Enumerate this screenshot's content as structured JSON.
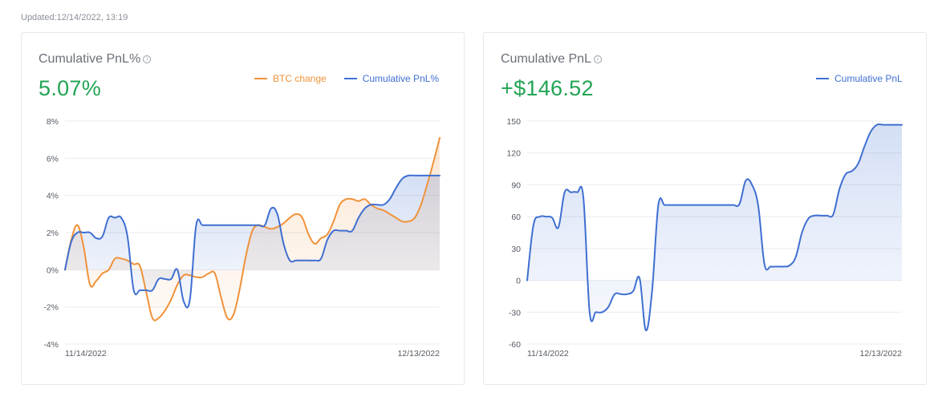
{
  "updated": "Updated:12/14/2022, 13:19",
  "colors": {
    "btc": "#f0923a",
    "pnl": "#3f6fd1",
    "value_green": "#22a453"
  },
  "cards": [
    {
      "title": "Cumulative PnL%",
      "info_icon": "info-icon",
      "value": "5.07%",
      "legend": [
        {
          "label": "BTC change",
          "color": "#f0923a"
        },
        {
          "label": "Cumulative PnL%",
          "color": "#3f6fd1"
        }
      ],
      "chart_data": {
        "type": "line",
        "x_labels": [
          "11/14/2022",
          "12/13/2022"
        ],
        "ylim": [
          -4,
          8
        ],
        "yticks": [
          -4,
          -2,
          0,
          2,
          4,
          6,
          8
        ],
        "ytick_labels": [
          "-4%",
          "-2%",
          "0%",
          "2%",
          "4%",
          "6%",
          "8%"
        ],
        "grid": true,
        "series": [
          {
            "name": "BTC change",
            "color": "#f0923a",
            "x": [
              0,
              0.5,
              1,
              1.5,
              2,
              2.5,
              3,
              3.5,
              4,
              4.5,
              5,
              5.5,
              6,
              6.5,
              7,
              7.5,
              8,
              8.5,
              9,
              9.5,
              10,
              10.5,
              11,
              11.5,
              12,
              12.5,
              13,
              13.5,
              14,
              14.5,
              15,
              15.5,
              16,
              16.5,
              17,
              17.5,
              18,
              18.5,
              19,
              19.5,
              20,
              20.5,
              21,
              21.5,
              22,
              22.5,
              23,
              23.5,
              24,
              24.5,
              25,
              25.5,
              26,
              26.5,
              27,
              27.5,
              28,
              28.5,
              29,
              29.5,
              30
            ],
            "values": [
              0,
              1.6,
              2.4,
              1.2,
              -0.8,
              -0.6,
              -0.2,
              0,
              0.6,
              0.6,
              0.5,
              0.3,
              0.2,
              -1.2,
              -2.6,
              -2.6,
              -2.2,
              -1.6,
              -0.8,
              -0.3,
              -0.3,
              -0.4,
              -0.4,
              -0.2,
              -0.2,
              -1.5,
              -2.6,
              -2.4,
              -1,
              0.8,
              2.1,
              2.4,
              2.3,
              2.2,
              2.3,
              2.5,
              2.8,
              3,
              2.8,
              1.9,
              1.4,
              1.7,
              1.9,
              2.6,
              3.5,
              3.8,
              3.8,
              3.7,
              3.8,
              3.5,
              3.3,
              3.2,
              3,
              2.8,
              2.6,
              2.6,
              2.8,
              3.5,
              4.6,
              5.8,
              7.1
            ]
          },
          {
            "name": "Cumulative PnL%",
            "color": "#3f6fd1",
            "x": [
              0,
              0.5,
              1,
              1.5,
              2,
              2.5,
              3,
              3.5,
              4,
              4.5,
              5,
              5.5,
              6,
              6.5,
              7,
              7.5,
              8,
              8.5,
              9,
              9.5,
              10,
              10.5,
              11,
              11.5,
              12,
              12.5,
              13,
              13.5,
              14,
              14.5,
              15,
              15.5,
              16,
              16.5,
              17,
              17.5,
              18,
              18.5,
              19,
              19.5,
              20,
              20.5,
              21,
              21.5,
              22,
              22.5,
              23,
              23.5,
              24,
              24.5,
              25,
              25.5,
              26,
              26.5,
              27,
              27.5,
              28,
              28.5,
              29,
              29.5,
              30
            ],
            "values": [
              0,
              1.5,
              2,
              2,
              2,
              1.7,
              1.8,
              2.8,
              2.8,
              2.8,
              1.8,
              -1.1,
              -1.1,
              -1.1,
              -1.1,
              -0.5,
              -0.5,
              -0.5,
              0,
              -1.7,
              -1.6,
              2.4,
              2.4,
              2.4,
              2.4,
              2.4,
              2.4,
              2.4,
              2.4,
              2.4,
              2.4,
              2.4,
              2.4,
              3.3,
              3,
              1.4,
              0.5,
              0.5,
              0.5,
              0.5,
              0.5,
              0.6,
              1.6,
              2.1,
              2.1,
              2.1,
              2.1,
              2.8,
              3.3,
              3.5,
              3.5,
              3.5,
              3.8,
              4.4,
              4.9,
              5.07,
              5.07,
              5.07,
              5.07,
              5.07,
              5.07
            ]
          }
        ]
      }
    },
    {
      "title": "Cumulative PnL",
      "info_icon": "info-icon",
      "value": "+$146.52",
      "legend": [
        {
          "label": "Cumulative PnL",
          "color": "#3f6fd1"
        }
      ],
      "chart_data": {
        "type": "area",
        "x_labels": [
          "11/14/2022",
          "12/13/2022"
        ],
        "ylim": [
          -60,
          150
        ],
        "yticks": [
          -60,
          -30,
          0,
          30,
          60,
          90,
          120,
          150
        ],
        "ytick_labels": [
          "-60",
          "-30",
          "0",
          "30",
          "60",
          "90",
          "120",
          "150"
        ],
        "grid": true,
        "series": [
          {
            "name": "Cumulative PnL",
            "color": "#3f6fd1",
            "x": [
              0,
              0.5,
              1,
              1.5,
              2,
              2.5,
              3,
              3.5,
              4,
              4.5,
              5,
              5.5,
              6,
              6.5,
              7,
              7.5,
              8,
              8.5,
              9,
              9.5,
              10,
              10.5,
              11,
              11.5,
              12,
              12.5,
              13,
              13.5,
              14,
              14.5,
              15,
              15.5,
              16,
              16.5,
              17,
              17.5,
              18,
              18.5,
              19,
              19.5,
              20,
              20.5,
              21,
              21.5,
              22,
              22.5,
              23,
              23.5,
              24,
              24.5,
              25,
              25.5,
              26,
              26.5,
              27,
              27.5,
              28,
              28.5,
              29,
              29.5,
              30
            ],
            "values": [
              0,
              52,
              60,
              60,
              59,
              50,
              83,
              83,
              83,
              78,
              -30,
              -30,
              -30,
              -25,
              -13,
              -13,
              -13,
              -10,
              2,
              -47,
              -10,
              71,
              71,
              71,
              71,
              71,
              71,
              71,
              71,
              71,
              71,
              71,
              71,
              71,
              72,
              94,
              90,
              70,
              15,
              13,
              13,
              13,
              14,
              22,
              45,
              58,
              61,
              61,
              61,
              62,
              86,
              100,
              103,
              110,
              126,
              140,
              146.52,
              146.52,
              146.52,
              146.52,
              146.52
            ]
          }
        ]
      }
    }
  ]
}
